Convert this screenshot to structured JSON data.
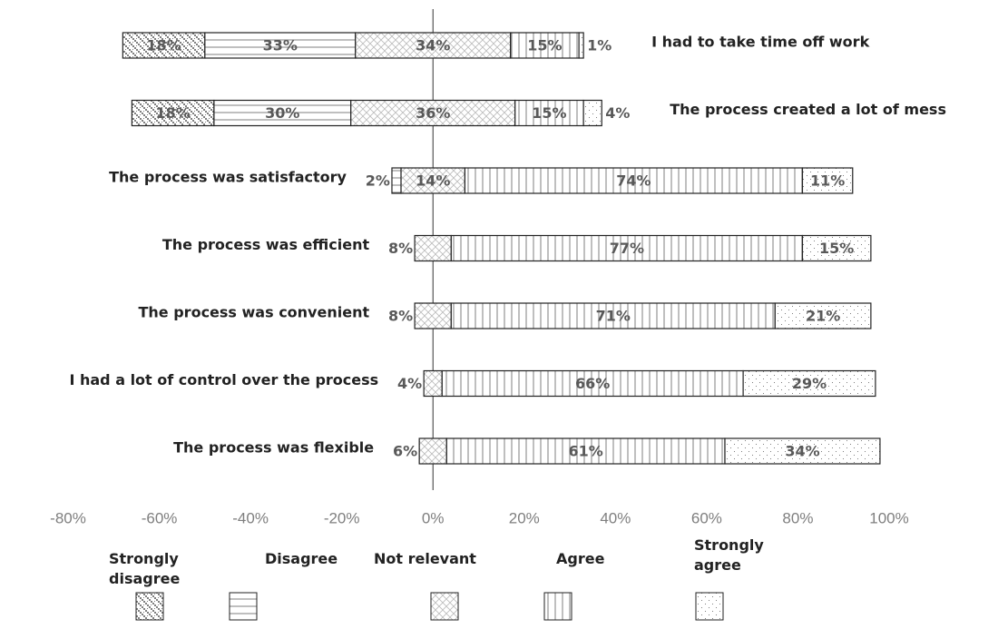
{
  "chart_data": {
    "type": "diverging-stacked-bar",
    "categories": [
      "I had to take time off work",
      "The process created a lot of mess",
      "The process was satisfactory",
      "The process was efficient",
      "The process was convenient",
      "I had a lot of control over the process",
      "The process was flexible"
    ],
    "series": [
      {
        "name": "Strongly disagree",
        "color": "#7f7f7f",
        "values": [
          18,
          18,
          null,
          null,
          null,
          null,
          null
        ],
        "value_labels": [
          "18%",
          "18%",
          null,
          null,
          null,
          null,
          null
        ]
      },
      {
        "name": "Disagree",
        "color": "#7f7f7f",
        "values": [
          33,
          30,
          2,
          null,
          null,
          null,
          null
        ],
        "value_labels": [
          "33%",
          "30%",
          "2%",
          null,
          null,
          null,
          null
        ]
      },
      {
        "name": "Not relevant",
        "color": "#7f7f7f",
        "values": [
          34,
          36,
          14,
          8,
          8,
          4,
          6
        ],
        "value_labels": [
          "34%",
          "36%",
          "14%",
          "8%",
          "8%",
          "4%",
          "6%"
        ]
      },
      {
        "name": "Agree",
        "color": "#7f7f7f",
        "values": [
          15,
          15,
          74,
          77,
          71,
          66,
          61
        ],
        "value_labels": [
          "15%",
          "15%",
          "74%",
          "77%",
          "71%",
          "66%",
          "61%"
        ]
      },
      {
        "name": "Strongly agree",
        "color": "#7f7f7f",
        "values": [
          1,
          4,
          11,
          15,
          21,
          29,
          34
        ],
        "value_labels": [
          "1%",
          "4%",
          "11%",
          "15%",
          "21%",
          "29%",
          "34%"
        ]
      }
    ],
    "xlim": [
      -80,
      100
    ],
    "xticks": [
      {
        "value": -80,
        "label": "-80%"
      },
      {
        "value": -60,
        "label": "-60%"
      },
      {
        "value": -40,
        "label": "-40%"
      },
      {
        "value": -20,
        "label": "-20%"
      },
      {
        "value": 0,
        "label": "0%"
      },
      {
        "value": 20,
        "label": "20%"
      },
      {
        "value": 40,
        "label": "40%"
      },
      {
        "value": 60,
        "label": "60%"
      },
      {
        "value": 80,
        "label": "80%"
      },
      {
        "value": 100,
        "label": "100%"
      }
    ],
    "legend": "bottom",
    "grid": false
  }
}
